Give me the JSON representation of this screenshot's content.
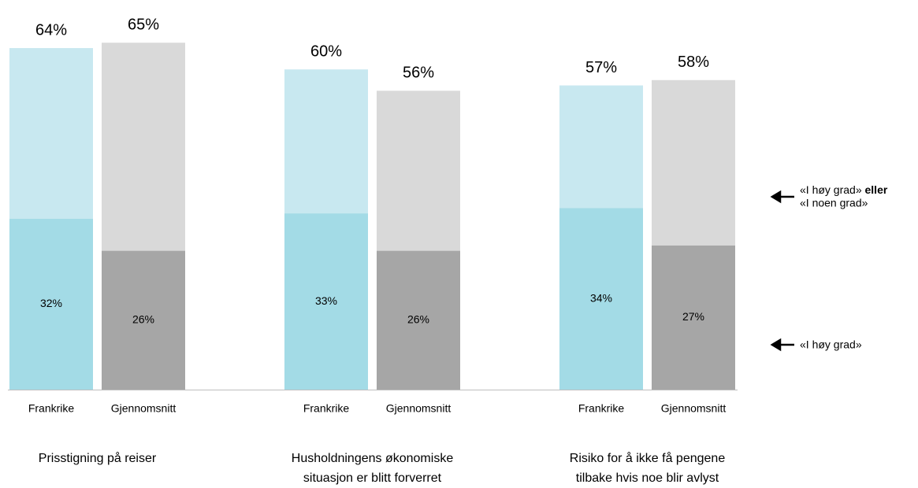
{
  "chart_data": {
    "type": "bar",
    "categories": [
      [
        "Prisstigning på reiser"
      ],
      [
        "Husholdningens økonomiske",
        "situasjon er blitt forverret"
      ],
      [
        "Risiko for å ikke få pengene",
        "tilbake hvis noe blir avlyst"
      ]
    ],
    "series": [
      {
        "name": "Frankrike",
        "color": "#c8e8f0",
        "values": [
          64,
          60,
          57
        ],
        "value_labels": [
          "64%",
          "60%",
          "57%"
        ],
        "inner_color": "#a3dbe6",
        "inner_values": [
          32,
          33,
          34
        ],
        "inner_value_labels": [
          "32%",
          "33%",
          "34%"
        ]
      },
      {
        "name": "Gjennomsnitt",
        "color": "#d9d9d9",
        "values": [
          65,
          56,
          58
        ],
        "value_labels": [
          "65%",
          "56%",
          "58%"
        ],
        "inner_color": "#a6a6a6",
        "inner_values": [
          26,
          26,
          27
        ],
        "inner_value_labels": [
          "26%",
          "26%",
          "27%"
        ]
      }
    ],
    "annotations": {
      "outer": {
        "text": "«I høy grad»",
        "bold": " eller",
        "text2": "«I noen grad»"
      },
      "inner": {
        "text": "«I høy grad»"
      }
    }
  }
}
